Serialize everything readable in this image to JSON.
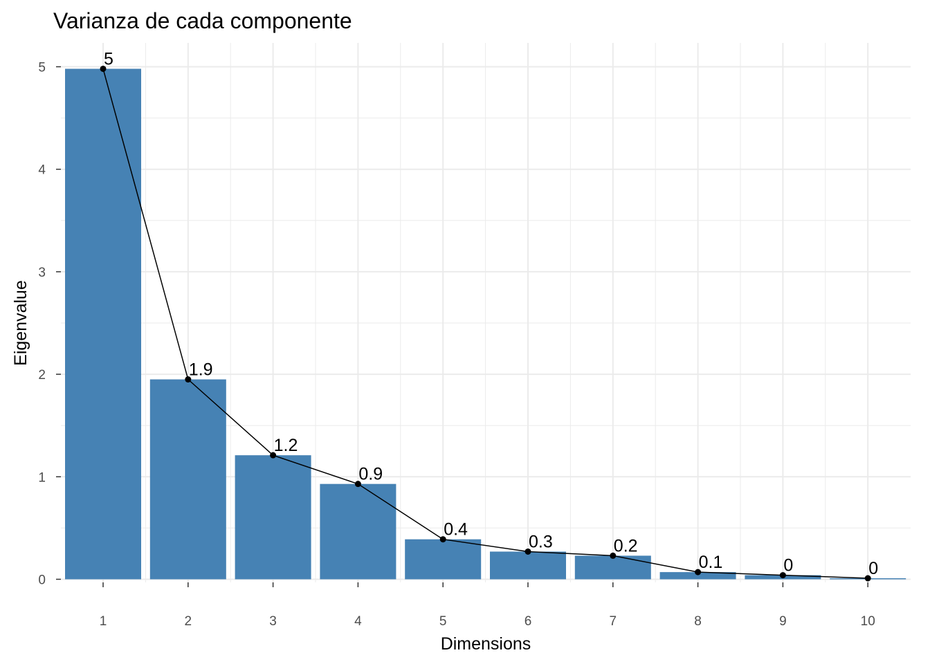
{
  "chart_data": {
    "type": "bar",
    "title": "Varianza de cada componente",
    "xlabel": "Dimensions",
    "ylabel": "Eigenvalue",
    "categories": [
      "1",
      "2",
      "3",
      "4",
      "5",
      "6",
      "7",
      "8",
      "9",
      "10"
    ],
    "values": [
      4.98,
      1.95,
      1.21,
      0.93,
      0.39,
      0.27,
      0.23,
      0.07,
      0.04,
      0.01
    ],
    "data_labels": [
      "5",
      "1.9",
      "1.2",
      "0.9",
      "0.4",
      "0.3",
      "0.2",
      "0.1",
      "0",
      "0"
    ],
    "line_overlay": true,
    "ylim": [
      0,
      5
    ],
    "yticks": [
      0,
      1,
      2,
      3,
      4,
      5
    ],
    "grid": true,
    "legend": "none",
    "colors": {
      "bar": "#4682B4",
      "line": "#000000",
      "grid": "#EBEBEB"
    }
  }
}
